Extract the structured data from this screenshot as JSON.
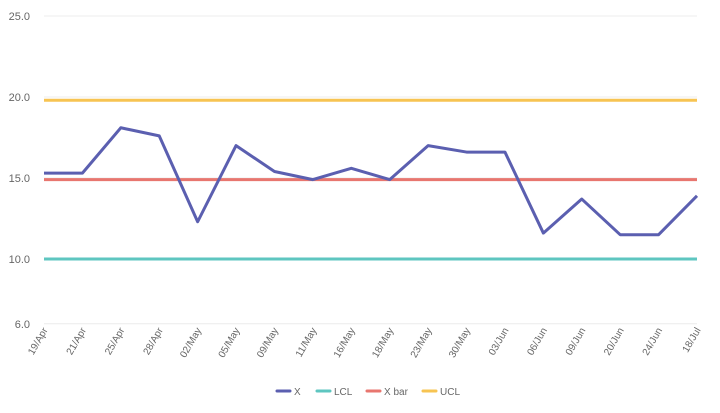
{
  "chart_data": {
    "type": "line",
    "title": "",
    "xlabel": "",
    "ylabel": "",
    "categories": [
      "19/Apr",
      "21/Apr",
      "25/Apr",
      "28/Apr",
      "02/May",
      "05/May",
      "09/May",
      "11/May",
      "16/May",
      "18/May",
      "23/May",
      "30/May",
      "03/Jun",
      "06/Jun",
      "09/Jun",
      "20/Jun",
      "24/Jun",
      "18/Jul"
    ],
    "ylim": [
      6,
      25
    ],
    "yticks": [
      "25.0",
      "20.0",
      "15.0",
      "10.0",
      "6.0"
    ],
    "ytick_values": [
      25,
      20,
      15,
      10,
      6
    ],
    "grid": true,
    "legend_position": "bottom",
    "series": [
      {
        "name": "X",
        "color": "#5b5fb0",
        "values": [
          15.3,
          15.3,
          18.1,
          17.6,
          12.3,
          17.0,
          15.4,
          14.9,
          15.6,
          14.9,
          17.0,
          16.6,
          16.6,
          11.6,
          13.7,
          11.5,
          11.5,
          13.9
        ]
      },
      {
        "name": "LCL",
        "color": "#5ec6c0",
        "values": [
          10,
          10,
          10,
          10,
          10,
          10,
          10,
          10,
          10,
          10,
          10,
          10,
          10,
          10,
          10,
          10,
          10,
          10
        ]
      },
      {
        "name": "X bar",
        "color": "#e8766f",
        "values": [
          14.9,
          14.9,
          14.9,
          14.9,
          14.9,
          14.9,
          14.9,
          14.9,
          14.9,
          14.9,
          14.9,
          14.9,
          14.9,
          14.9,
          14.9,
          14.9,
          14.9,
          14.9
        ]
      },
      {
        "name": "UCL",
        "color": "#f7c452",
        "values": [
          19.8,
          19.8,
          19.8,
          19.8,
          19.8,
          19.8,
          19.8,
          19.8,
          19.8,
          19.8,
          19.8,
          19.8,
          19.8,
          19.8,
          19.8,
          19.8,
          19.8,
          19.8
        ]
      }
    ]
  }
}
